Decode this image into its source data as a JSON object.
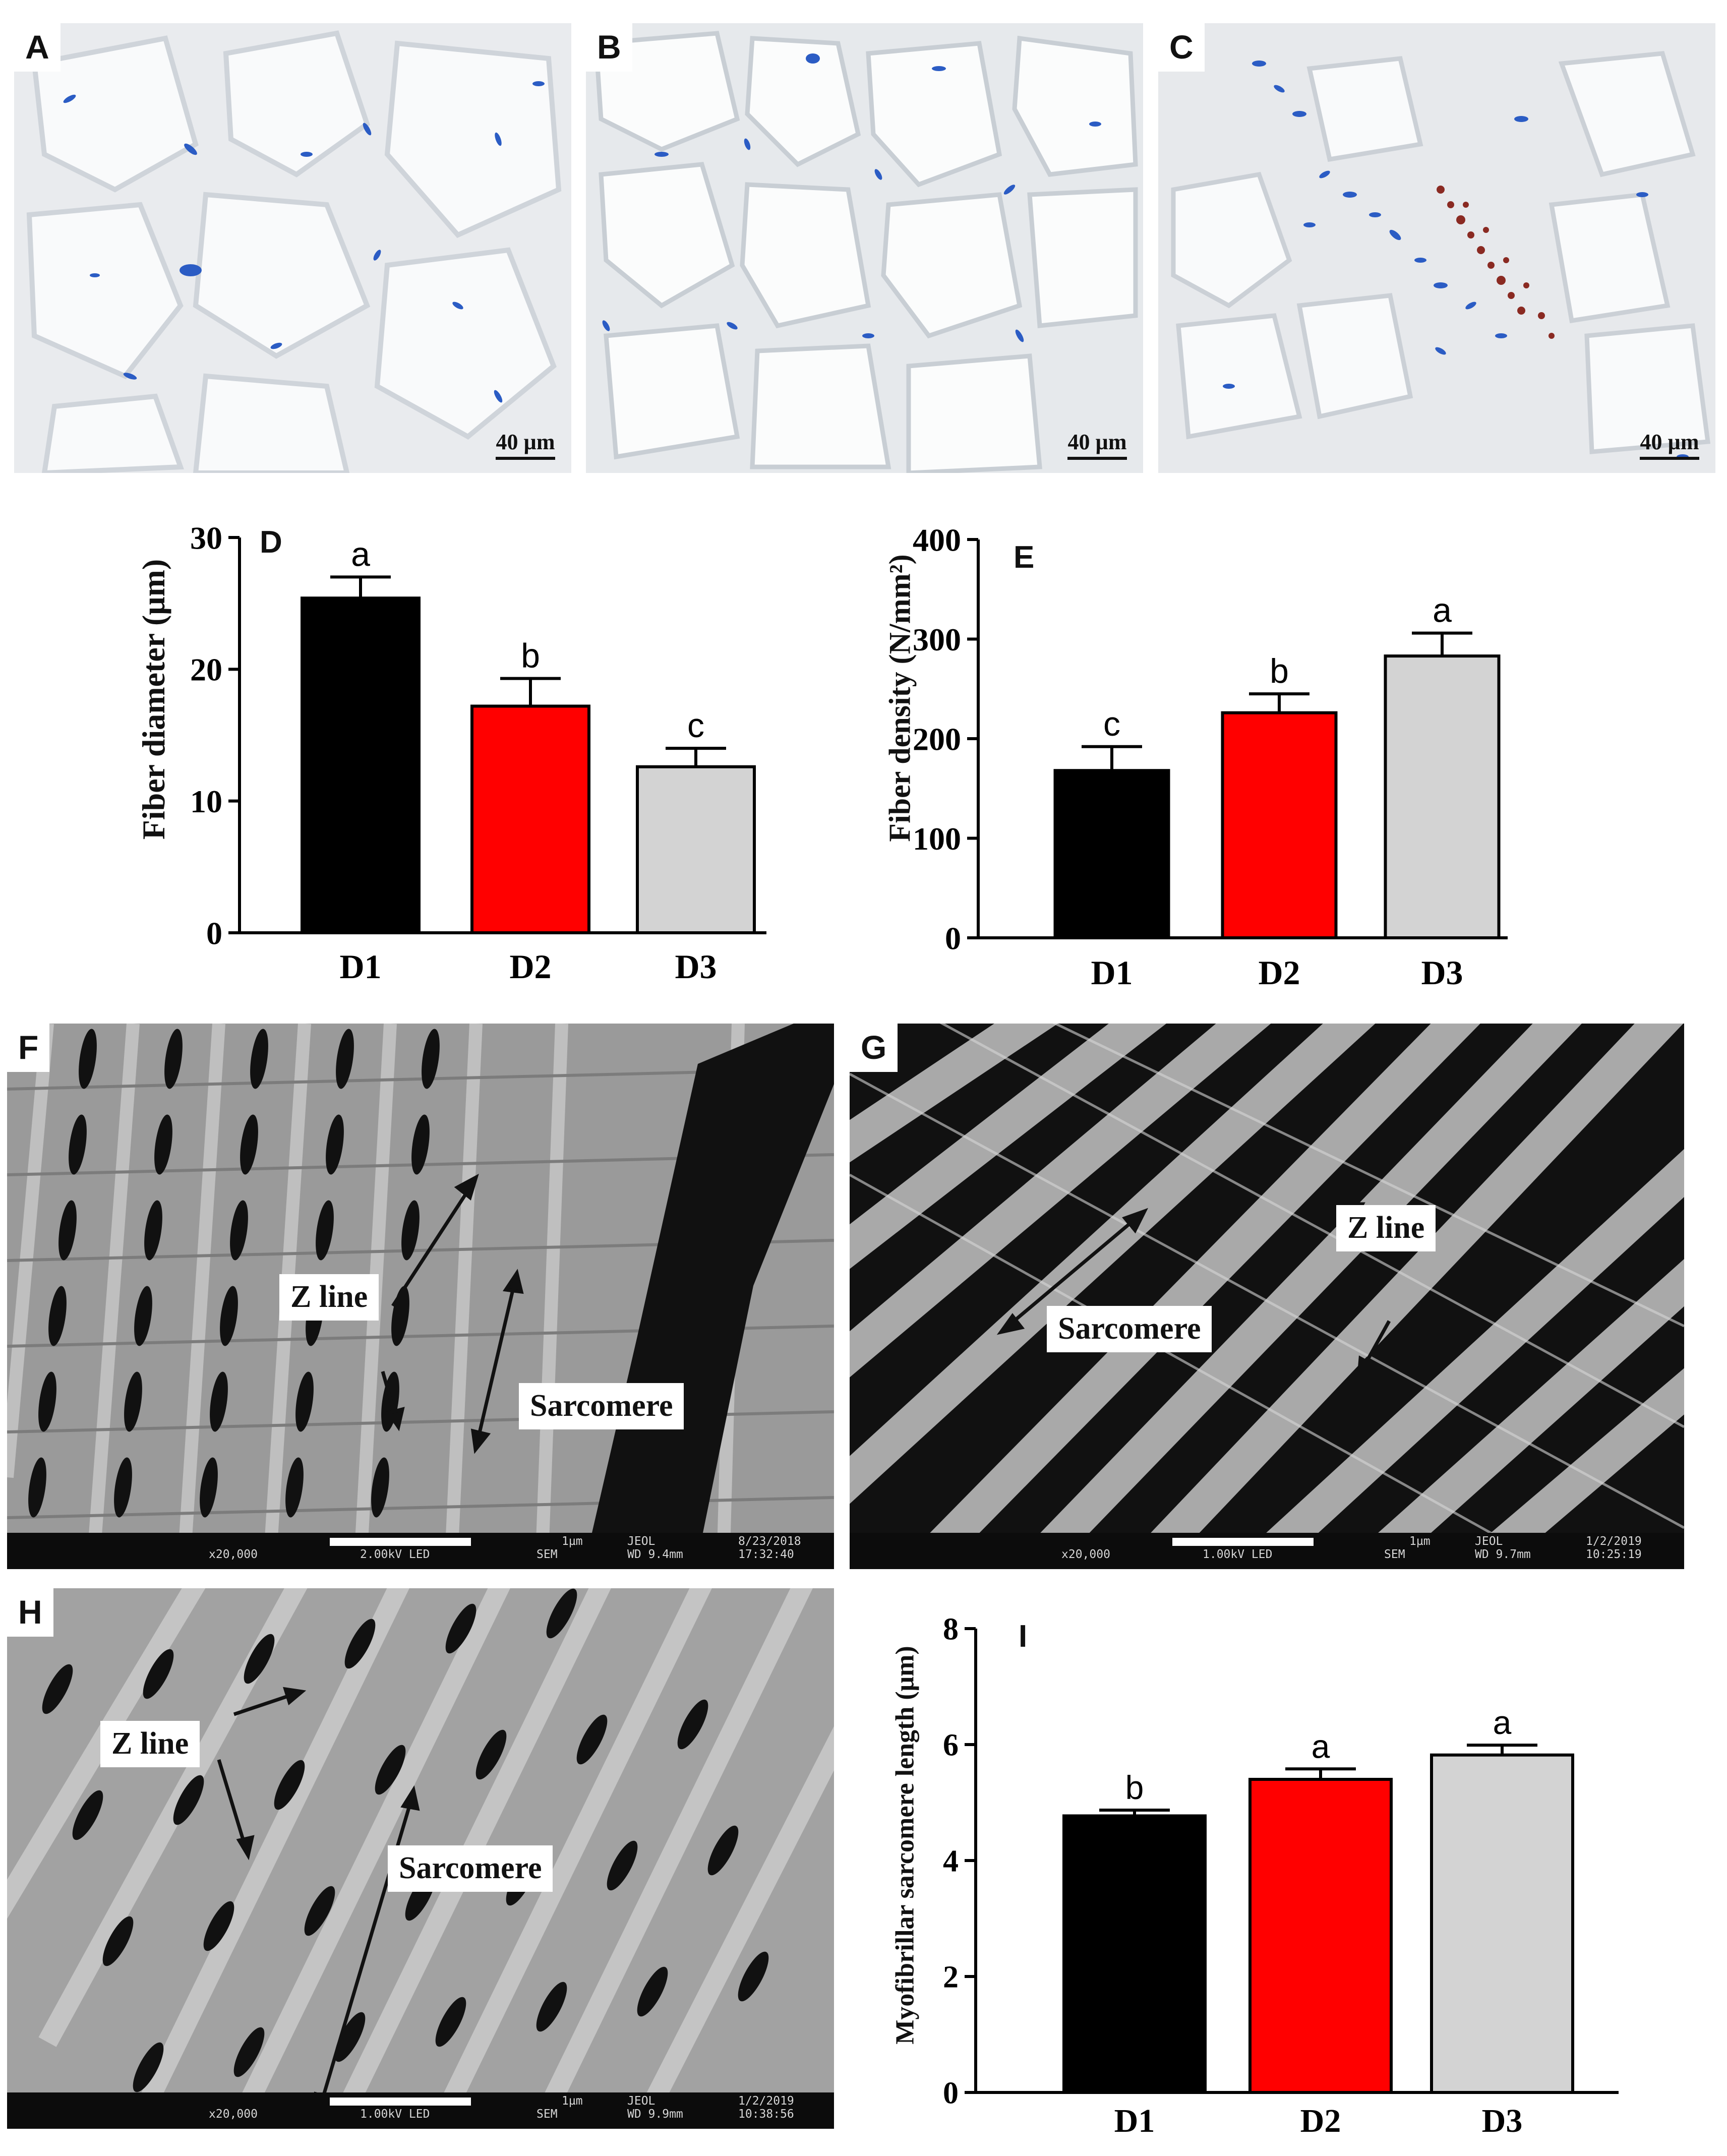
{
  "histology": {
    "panels": [
      {
        "letter": "A",
        "scale": "40 µm"
      },
      {
        "letter": "B",
        "scale": "40 µm"
      },
      {
        "letter": "C",
        "scale": "40 µm"
      }
    ]
  },
  "sem": {
    "panels": [
      {
        "letter": "F",
        "labels": {
          "zline": "Z line",
          "sarcomere": "Sarcomere"
        },
        "footer": {
          "mag": "x20,000",
          "kv": "2.00kV LED",
          "mode": "SEM",
          "scale": "1µm",
          "maker": "JEOL",
          "wd": "WD 9.4mm",
          "date": "8/23/2018",
          "time": "17:32:40"
        }
      },
      {
        "letter": "G",
        "labels": {
          "zline": "Z line",
          "sarcomere": "Sarcomere"
        },
        "footer": {
          "mag": "x20,000",
          "kv": "1.00kV LED",
          "mode": "SEM",
          "scale": "1µm",
          "maker": "JEOL",
          "wd": "WD 9.7mm",
          "date": "1/2/2019",
          "time": "10:25:19"
        }
      },
      {
        "letter": "H",
        "labels": {
          "zline": "Z line",
          "sarcomere": "Sarcomere"
        },
        "footer": {
          "mag": "x20,000",
          "kv": "1.00kV LED",
          "mode": "SEM",
          "scale": "1µm",
          "maker": "JEOL",
          "wd": "WD 9.9mm",
          "date": "1/2/2019",
          "time": "10:38:56"
        }
      }
    ]
  },
  "chart_data": [
    {
      "type": "bar",
      "panel": "D",
      "categories": [
        "D1",
        "D2",
        "D3"
      ],
      "values": [
        25.4,
        17.2,
        12.6
      ],
      "errors": [
        1.6,
        2.1,
        1.4
      ],
      "significance": [
        "a",
        "b",
        "c"
      ],
      "colors": [
        "#000000",
        "#ff0000",
        "#d3d3d3"
      ],
      "ylabel": "Fiber diameter (μm)",
      "ylim": [
        0,
        30
      ],
      "yticks": [
        0,
        10,
        20,
        30
      ],
      "grid": false
    },
    {
      "type": "bar",
      "panel": "E",
      "categories": [
        "D1",
        "D2",
        "D3"
      ],
      "values": [
        168,
        226,
        283
      ],
      "errors": [
        24,
        19,
        23
      ],
      "significance": [
        "c",
        "b",
        "a"
      ],
      "colors": [
        "#000000",
        "#ff0000",
        "#d3d3d3"
      ],
      "ylabel": "Fiber density (N/mm²)",
      "ylim": [
        0,
        400
      ],
      "yticks": [
        0,
        100,
        200,
        300,
        400
      ],
      "grid": false
    },
    {
      "type": "bar",
      "panel": "I",
      "categories": [
        "D1",
        "D2",
        "D3"
      ],
      "values": [
        4.77,
        5.4,
        5.82
      ],
      "errors": [
        0.1,
        0.18,
        0.17
      ],
      "significance": [
        "b",
        "a",
        "a"
      ],
      "colors": [
        "#000000",
        "#ff0000",
        "#d3d3d3"
      ],
      "ylabel": "Myofibrillar sarcomere length (μm)",
      "ylim": [
        0,
        8
      ],
      "yticks": [
        0,
        2,
        4,
        6,
        8
      ],
      "grid": false
    }
  ]
}
